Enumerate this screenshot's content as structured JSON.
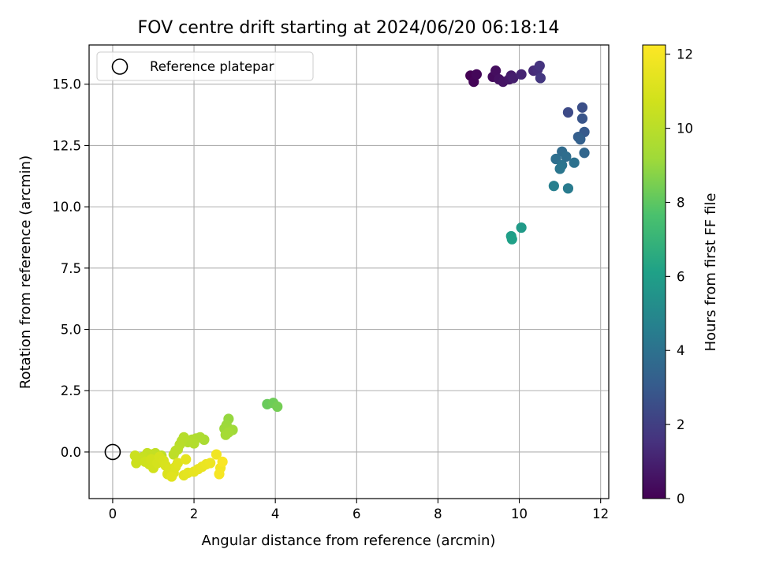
{
  "chart_data": {
    "type": "scatter",
    "title": "FOV centre drift starting at 2024/06/20 06:18:14",
    "xlabel": "Angular distance from reference (arcmin)",
    "ylabel": "Rotation from reference (arcmin)",
    "xlim": [
      -0.58,
      12.2
    ],
    "ylim": [
      -1.9,
      16.6
    ],
    "xticks": [
      0,
      2,
      4,
      6,
      8,
      10,
      12
    ],
    "yticks": [
      0.0,
      2.5,
      5.0,
      7.5,
      10.0,
      12.5,
      15.0
    ],
    "xtick_labels": [
      "0",
      "2",
      "4",
      "6",
      "8",
      "10",
      "12"
    ],
    "ytick_labels": [
      "0.0",
      "2.5",
      "5.0",
      "7.5",
      "10.0",
      "12.5",
      "15.0"
    ],
    "grid": true,
    "legend": {
      "placement": "upper-left",
      "entries": [
        "Reference platepar"
      ]
    },
    "reference_point": {
      "x": 0,
      "y": 0,
      "label": "Reference platepar"
    },
    "colorbar": {
      "label": "Hours from first FF file",
      "colormap": "viridis",
      "range": [
        0,
        12.25
      ],
      "ticks": [
        0,
        2,
        4,
        6,
        8,
        10,
        12
      ],
      "tick_labels": [
        "0",
        "2",
        "4",
        "6",
        "8",
        "10",
        "12"
      ]
    },
    "series": [
      {
        "points": [
          {
            "x": 8.8,
            "y": 15.35,
            "c": 0.0
          },
          {
            "x": 8.88,
            "y": 15.1,
            "c": 0.1
          },
          {
            "x": 8.95,
            "y": 15.4,
            "c": 0.2
          },
          {
            "x": 9.35,
            "y": 15.3,
            "c": 0.3
          },
          {
            "x": 9.42,
            "y": 15.55,
            "c": 0.4
          },
          {
            "x": 9.5,
            "y": 15.2,
            "c": 0.5
          },
          {
            "x": 9.6,
            "y": 15.1,
            "c": 0.6
          },
          {
            "x": 9.75,
            "y": 15.2,
            "c": 0.7
          },
          {
            "x": 9.8,
            "y": 15.35,
            "c": 0.8
          },
          {
            "x": 9.85,
            "y": 15.25,
            "c": 0.9
          },
          {
            "x": 10.05,
            "y": 15.4,
            "c": 1.1
          },
          {
            "x": 10.35,
            "y": 15.55,
            "c": 1.3
          },
          {
            "x": 10.45,
            "y": 15.6,
            "c": 1.45
          },
          {
            "x": 10.5,
            "y": 15.75,
            "c": 1.6
          },
          {
            "x": 10.52,
            "y": 15.25,
            "c": 1.7
          },
          {
            "x": 11.2,
            "y": 13.85,
            "c": 2.4
          },
          {
            "x": 11.55,
            "y": 14.05,
            "c": 2.6
          },
          {
            "x": 11.55,
            "y": 13.6,
            "c": 2.8
          },
          {
            "x": 11.6,
            "y": 13.05,
            "c": 3.0
          },
          {
            "x": 11.45,
            "y": 12.85,
            "c": 3.2
          },
          {
            "x": 11.5,
            "y": 12.75,
            "c": 3.3
          },
          {
            "x": 11.6,
            "y": 12.2,
            "c": 3.5
          },
          {
            "x": 11.05,
            "y": 12.25,
            "c": 3.7
          },
          {
            "x": 11.15,
            "y": 12.05,
            "c": 3.8
          },
          {
            "x": 10.9,
            "y": 11.95,
            "c": 3.9
          },
          {
            "x": 11.35,
            "y": 11.8,
            "c": 4.0
          },
          {
            "x": 11.05,
            "y": 11.7,
            "c": 4.1
          },
          {
            "x": 11.0,
            "y": 11.55,
            "c": 4.2
          },
          {
            "x": 11.2,
            "y": 10.75,
            "c": 4.4
          },
          {
            "x": 10.85,
            "y": 10.85,
            "c": 4.6
          },
          {
            "x": 10.05,
            "y": 9.15,
            "c": 5.8
          },
          {
            "x": 9.8,
            "y": 8.8,
            "c": 6.0
          },
          {
            "x": 9.82,
            "y": 8.68,
            "c": 6.1
          },
          {
            "x": 3.8,
            "y": 1.95,
            "c": 8.2
          },
          {
            "x": 3.95,
            "y": 2.0,
            "c": 8.3
          },
          {
            "x": 4.05,
            "y": 1.85,
            "c": 8.4
          },
          {
            "x": 2.85,
            "y": 1.35,
            "c": 9.0
          },
          {
            "x": 2.8,
            "y": 1.1,
            "c": 9.1
          },
          {
            "x": 2.75,
            "y": 0.95,
            "c": 9.15
          },
          {
            "x": 2.95,
            "y": 0.9,
            "c": 9.2
          },
          {
            "x": 2.85,
            "y": 0.8,
            "c": 9.3
          },
          {
            "x": 2.78,
            "y": 0.7,
            "c": 9.35
          },
          {
            "x": 2.25,
            "y": 0.5,
            "c": 9.5
          },
          {
            "x": 2.15,
            "y": 0.6,
            "c": 9.6
          },
          {
            "x": 2.05,
            "y": 0.55,
            "c": 9.65
          },
          {
            "x": 1.95,
            "y": 0.5,
            "c": 9.7
          },
          {
            "x": 2.0,
            "y": 0.35,
            "c": 9.75
          },
          {
            "x": 1.85,
            "y": 0.4,
            "c": 9.8
          },
          {
            "x": 1.75,
            "y": 0.6,
            "c": 9.85
          },
          {
            "x": 1.7,
            "y": 0.45,
            "c": 9.9
          },
          {
            "x": 1.65,
            "y": 0.3,
            "c": 9.95
          },
          {
            "x": 1.6,
            "y": 0.1,
            "c": 10.0
          },
          {
            "x": 1.55,
            "y": 0.05,
            "c": 10.05
          },
          {
            "x": 1.5,
            "y": -0.1,
            "c": 10.1
          },
          {
            "x": 1.2,
            "y": -0.15,
            "c": 10.15
          },
          {
            "x": 1.05,
            "y": -0.05,
            "c": 10.2
          },
          {
            "x": 0.95,
            "y": -0.1,
            "c": 10.3
          },
          {
            "x": 0.85,
            "y": -0.05,
            "c": 10.35
          },
          {
            "x": 0.75,
            "y": -0.2,
            "c": 10.4
          },
          {
            "x": 0.7,
            "y": -0.3,
            "c": 10.45
          },
          {
            "x": 0.6,
            "y": -0.35,
            "c": 10.5
          },
          {
            "x": 0.55,
            "y": -0.15,
            "c": 10.55
          },
          {
            "x": 0.58,
            "y": -0.45,
            "c": 10.6
          },
          {
            "x": 0.8,
            "y": -0.4,
            "c": 10.65
          },
          {
            "x": 0.9,
            "y": -0.5,
            "c": 10.7
          },
          {
            "x": 1.0,
            "y": -0.65,
            "c": 10.75
          },
          {
            "x": 0.95,
            "y": -0.3,
            "c": 10.8
          },
          {
            "x": 1.1,
            "y": -0.45,
            "c": 10.85
          },
          {
            "x": 1.15,
            "y": -0.2,
            "c": 10.9
          },
          {
            "x": 1.25,
            "y": -0.35,
            "c": 10.95
          },
          {
            "x": 1.3,
            "y": -0.55,
            "c": 11.0
          },
          {
            "x": 1.4,
            "y": -0.7,
            "c": 11.05
          },
          {
            "x": 1.35,
            "y": -0.9,
            "c": 11.1
          },
          {
            "x": 1.5,
            "y": -0.85,
            "c": 11.15
          },
          {
            "x": 1.55,
            "y": -0.6,
            "c": 11.2
          },
          {
            "x": 1.6,
            "y": -0.45,
            "c": 11.25
          },
          {
            "x": 1.45,
            "y": -1.0,
            "c": 11.3
          },
          {
            "x": 1.75,
            "y": -0.95,
            "c": 11.35
          },
          {
            "x": 1.85,
            "y": -0.85,
            "c": 11.4
          },
          {
            "x": 1.8,
            "y": -0.3,
            "c": 11.45
          },
          {
            "x": 2.0,
            "y": -0.8,
            "c": 11.5
          },
          {
            "x": 2.1,
            "y": -0.7,
            "c": 11.55
          },
          {
            "x": 2.2,
            "y": -0.6,
            "c": 11.6
          },
          {
            "x": 2.3,
            "y": -0.5,
            "c": 11.65
          },
          {
            "x": 2.4,
            "y": -0.45,
            "c": 11.7
          },
          {
            "x": 2.55,
            "y": -0.1,
            "c": 11.8
          },
          {
            "x": 2.65,
            "y": -0.65,
            "c": 11.9
          },
          {
            "x": 2.62,
            "y": -0.9,
            "c": 12.0
          },
          {
            "x": 2.7,
            "y": -0.4,
            "c": 12.1
          }
        ]
      }
    ]
  }
}
